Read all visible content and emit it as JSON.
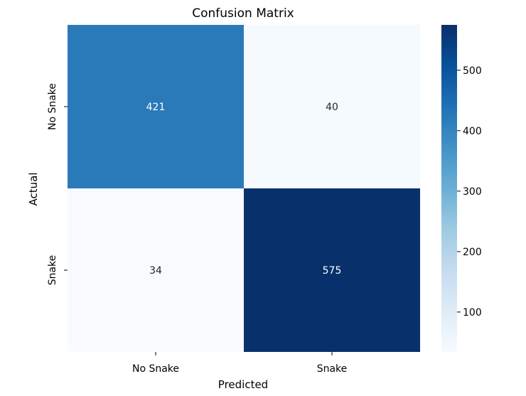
{
  "chart_data": {
    "type": "heatmap",
    "title": "Confusion Matrix",
    "xlabel": "Predicted",
    "ylabel": "Actual",
    "x_categories": [
      "No Snake",
      "Snake"
    ],
    "y_categories": [
      "No Snake",
      "Snake"
    ],
    "values": [
      [
        421,
        40
      ],
      [
        34,
        575
      ]
    ],
    "colormap": "Blues",
    "color_low": "#f7fbff",
    "color_high": "#08306b",
    "vmin": 34,
    "vmax": 575,
    "colorbar_ticks": [
      100,
      200,
      300,
      400,
      500
    ],
    "grid": false,
    "legend": "colorbar-right"
  }
}
